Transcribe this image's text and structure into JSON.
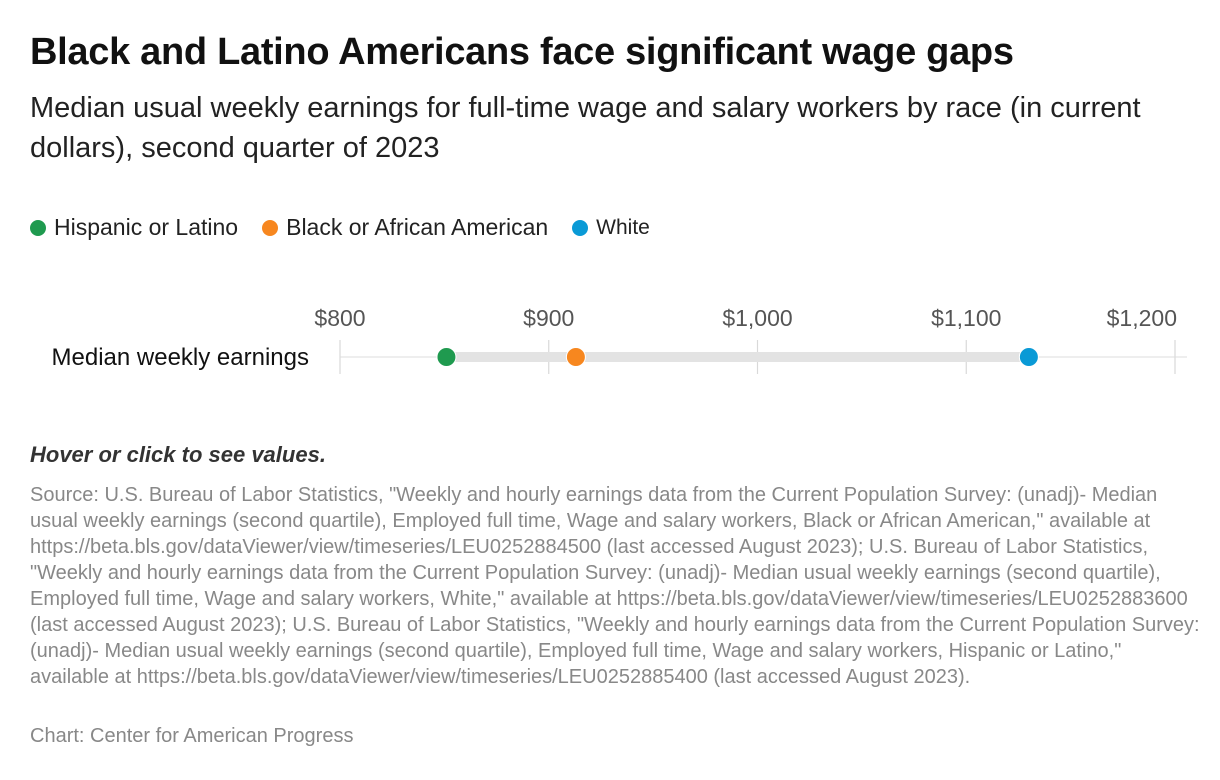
{
  "title": "Black and Latino Americans face significant wage gaps",
  "subtitle": "Median usual weekly earnings for full-time wage and salary workers by race (in current dollars), second quarter of 2023",
  "legend": [
    {
      "label": "Hispanic or Latino",
      "color": "#1f9a4f"
    },
    {
      "label": "Black or African American",
      "color": "#f7871f"
    },
    {
      "label": "White",
      "color": "#0a9ad6"
    }
  ],
  "hint": "Hover or click to see values.",
  "source": "Source: U.S. Bureau of Labor Statistics, \"Weekly and hourly earnings data from the Current Population Survey: (unadj)- Median usual weekly earnings (second quartile), Employed full time, Wage and salary workers, Black or African American,\" available at https://beta.bls.gov/dataViewer/view/timeseries/LEU0252884500 (last accessed August 2023); U.S. Bureau of Labor Statistics, \"Weekly and hourly earnings data from the Current Population Survey: (unadj)- Median usual weekly earnings (second quartile), Employed full time, Wage and salary workers, White,\" available at https://beta.bls.gov/dataViewer/view/timeseries/LEU0252883600 (last accessed August 2023); U.S. Bureau of Labor Statistics, \"Weekly and hourly earnings data from the Current Population Survey: (unadj)- Median usual weekly earnings (second quartile), Employed full time, Wage and salary workers, Hispanic or Latino,\" available at https://beta.bls.gov/dataViewer/view/timeseries/LEU0252885400 (last accessed August 2023).",
  "credit": "Chart: Center for American Progress",
  "chart_data": {
    "type": "scatter",
    "title": "Black and Latino Americans face significant wage gaps",
    "subtitle": "Median usual weekly earnings for full-time wage and salary workers by race (in current dollars), second quarter of 2023",
    "categories": [
      "Median weekly earnings"
    ],
    "series": [
      {
        "name": "Hispanic or Latino",
        "values": [
          851
        ],
        "color": "#1f9a4f"
      },
      {
        "name": "Black or African American",
        "values": [
          913
        ],
        "color": "#f7871f"
      },
      {
        "name": "White",
        "values": [
          1130
        ],
        "color": "#0a9ad6"
      }
    ],
    "xlim": [
      800,
      1200
    ],
    "xticks": [
      800,
      900,
      1000,
      1100,
      1200
    ],
    "xtick_labels": [
      "$800",
      "$900",
      "$1,000",
      "$1,100",
      "$1,200"
    ],
    "xlabel": "",
    "ylabel": "",
    "grid": true,
    "legend_position": "top-left"
  }
}
